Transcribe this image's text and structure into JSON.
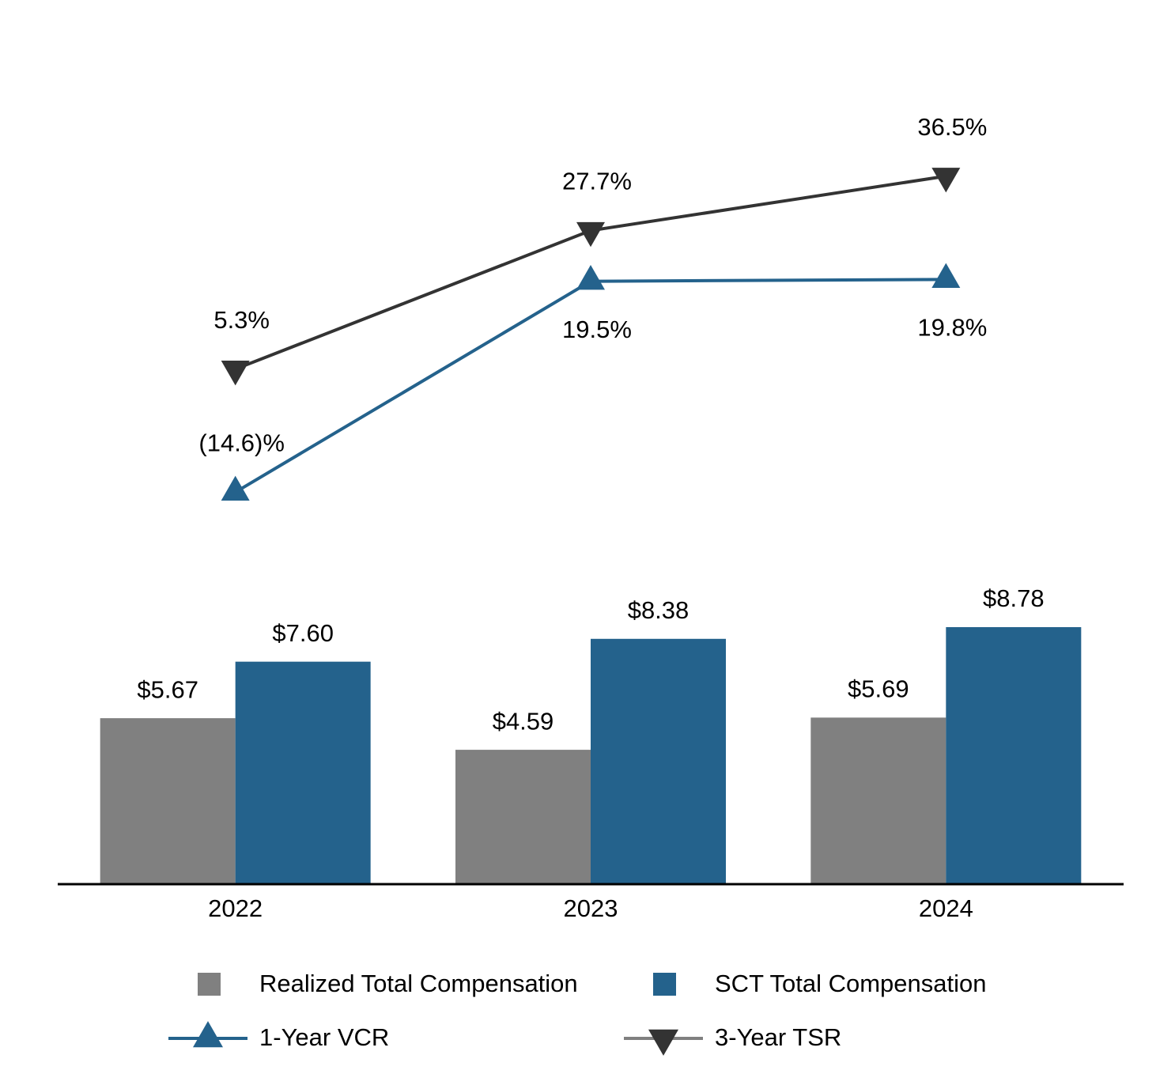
{
  "chart_data": {
    "type": "bar-line",
    "categories": [
      "2022",
      "2023",
      "2024"
    ],
    "series": [
      {
        "name": "Realized Total Compensation",
        "type": "bar",
        "color": "#808080",
        "values": [
          5.67,
          4.59,
          5.69
        ],
        "value_labels": [
          "$5.67",
          "$4.59",
          "$5.69"
        ]
      },
      {
        "name": "SCT Total Compensation",
        "type": "bar",
        "color": "#24628c",
        "values": [
          7.6,
          8.38,
          8.78
        ],
        "value_labels": [
          "$7.60",
          "$8.38",
          "$8.78"
        ]
      },
      {
        "name": "1-Year VCR",
        "type": "line",
        "axis": "y2",
        "marker": "triangle-up",
        "color": "#24628c",
        "values": [
          -14.6,
          19.5,
          19.8
        ],
        "value_labels": [
          "(14.6)%",
          "19.5%",
          "19.8%"
        ]
      },
      {
        "name": "3-Year TSR",
        "type": "line",
        "axis": "y2",
        "marker": "triangle-down",
        "color": "#333333",
        "values": [
          5.3,
          27.7,
          36.5
        ],
        "value_labels": [
          "5.3%",
          "27.7%",
          "36.5%"
        ]
      }
    ],
    "ylim": [
      0,
      27.5
    ],
    "y2lim": [
      -78,
      52.2
    ]
  }
}
